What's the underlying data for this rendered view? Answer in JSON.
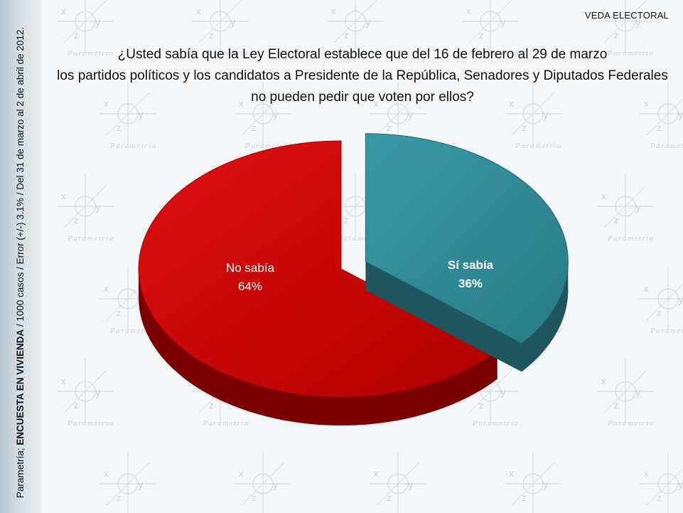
{
  "header": {
    "tag": "VEDA ELECTORAL",
    "question_lines": [
      "¿Usted sabía que la Ley Electoral establece que del 16 de febrero al 29 de marzo",
      "los partidos políticos y los candidatos a Presidente de la República, Senadores y Diputados Federales",
      "no pueden pedir que voten por ellos?"
    ]
  },
  "sidebar": {
    "source": "Parametría;",
    "survey": "ENCUESTA EN VIVIENDA",
    "details": " / 1000 casos / Error (+/-) 3.1% / Del 31 de marzo al 2 de abril de 2012."
  },
  "watermark": {
    "brand": "Parametría",
    "axis_x": "x",
    "axis_y": "y",
    "axis_z": "z"
  },
  "chart_data": {
    "type": "pie",
    "title": "",
    "slices": [
      {
        "label": "No sabía",
        "value": 64,
        "display": "64%",
        "color": "#c00000",
        "exploded": false
      },
      {
        "label": "Sí sabía",
        "value": 36,
        "display": "36%",
        "color": "#31859c",
        "exploded": true
      }
    ]
  }
}
